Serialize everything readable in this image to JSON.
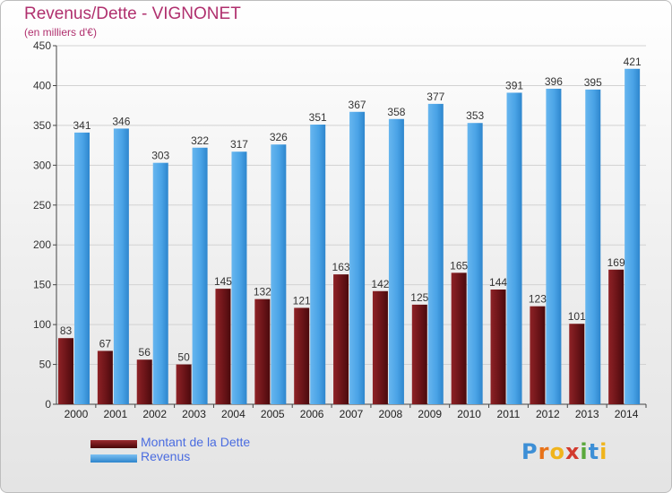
{
  "header": {
    "title": "Revenus/Dette - VIGNONET",
    "subtitle": "(en milliers d'€)"
  },
  "chart_data": {
    "type": "bar",
    "categories": [
      "2000",
      "2001",
      "2002",
      "2003",
      "2004",
      "2005",
      "2006",
      "2007",
      "2008",
      "2009",
      "2010",
      "2011",
      "2012",
      "2013",
      "2014"
    ],
    "series": [
      {
        "name": "Montant de la Dette",
        "color": "#6b1418",
        "values": [
          83,
          67,
          56,
          50,
          145,
          132,
          121,
          163,
          142,
          125,
          165,
          144,
          123,
          101,
          169
        ]
      },
      {
        "name": "Revenus",
        "color": "#4aa3e6",
        "values": [
          341,
          346,
          303,
          322,
          317,
          326,
          351,
          367,
          358,
          377,
          353,
          391,
          396,
          395,
          421
        ]
      }
    ],
    "yticks": [
      0,
      50,
      100,
      150,
      200,
      250,
      300,
      350,
      400,
      450
    ],
    "ylim": [
      0,
      450
    ],
    "grid": true,
    "legend_position": "bottom-left"
  },
  "legend": {
    "items": [
      {
        "label": "Montant de la Dette",
        "color": "#6b1418"
      },
      {
        "label": "Revenus",
        "color": "#4aa3e6"
      }
    ]
  },
  "logo": {
    "letters": [
      "P",
      "r",
      "o",
      "x",
      "i",
      "t",
      "i"
    ],
    "colors": [
      "#3d8fd6",
      "#e8731a",
      "#f0b41c",
      "#d23a2e",
      "#5aa83a",
      "#3d8fd6",
      "#f0b41c"
    ]
  }
}
